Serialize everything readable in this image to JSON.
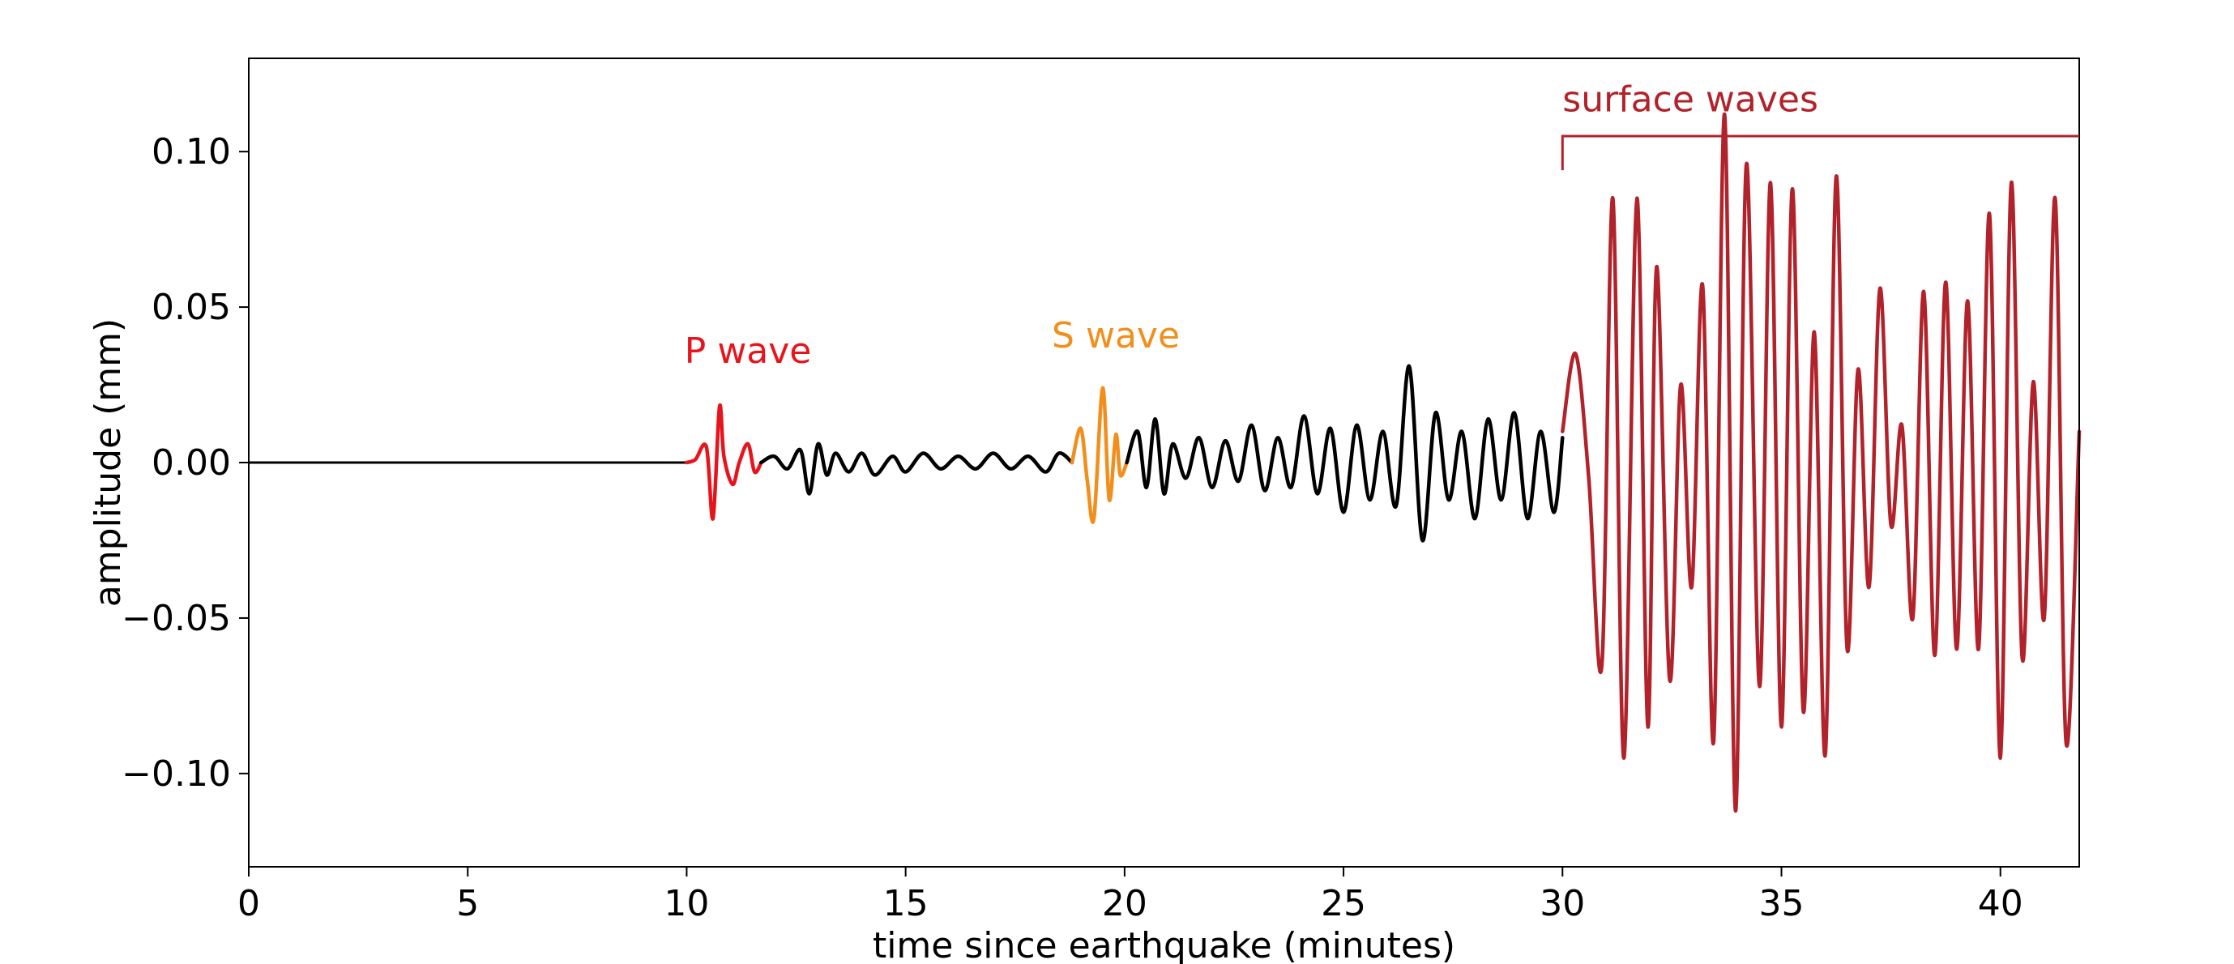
{
  "chart_data": {
    "type": "line",
    "title": "",
    "xlabel": "time since earthquake (minutes)",
    "ylabel": "amplitude (mm)",
    "xlim": [
      0,
      41.8
    ],
    "ylim": [
      -0.13,
      0.13
    ],
    "grid": false,
    "x_ticks": [
      0,
      5,
      10,
      15,
      20,
      25,
      30,
      35,
      40
    ],
    "x_tick_labels": [
      "0",
      "5",
      "10",
      "15",
      "20",
      "25",
      "30",
      "35",
      "40"
    ],
    "y_ticks": [
      0.1,
      0.05,
      0.0,
      -0.05,
      -0.1
    ],
    "y_tick_labels": [
      "0.10",
      "0.05",
      "0.00",
      "−0.05",
      "−0.10"
    ],
    "colors": {
      "background": "#000000",
      "p_wave": "#e8141c",
      "s_wave": "#f28e1c",
      "surface_waves": "#b2222a"
    },
    "annotations": [
      {
        "id": "p",
        "text": "P wave",
        "x": 11.4,
        "y": 0.032,
        "color": "#e8141c"
      },
      {
        "id": "s",
        "text": "S wave",
        "x": 19.8,
        "y": 0.037,
        "color": "#f28e1c"
      },
      {
        "id": "surface",
        "text": "surface waves",
        "x": 30.0,
        "y": 0.113,
        "color": "#b2222a",
        "bracket_x": [
          30.0,
          41.8
        ],
        "bracket_y": 0.105,
        "bracket_drop": 0.094
      }
    ],
    "series": [
      {
        "segment": "background-noise",
        "color": "#000000",
        "x": [
          0,
          1,
          2,
          3,
          4,
          5,
          6,
          7,
          8,
          9,
          9.8,
          10.0
        ],
        "y": [
          0.0,
          0.0,
          0.0,
          0.0,
          0.0,
          0.0,
          0.0,
          0.0,
          0.0,
          0.0,
          0.0,
          0.0
        ]
      },
      {
        "segment": "p-wave",
        "color": "#e8141c",
        "x": [
          10.0,
          10.2,
          10.45,
          10.6,
          10.75,
          10.85,
          11.05,
          11.2,
          11.4,
          11.55,
          11.7
        ],
        "y": [
          0.0,
          0.001,
          0.005,
          -0.018,
          0.018,
          0.002,
          -0.007,
          0.0,
          0.006,
          -0.003,
          0.0
        ]
      },
      {
        "segment": "coda-1",
        "color": "#000000",
        "x": [
          11.7,
          12.0,
          12.3,
          12.6,
          12.8,
          13.0,
          13.2,
          13.4,
          13.7,
          14.0,
          14.3,
          14.7,
          15.0,
          15.4,
          15.8,
          16.2,
          16.6,
          17.0,
          17.4,
          17.8,
          18.2,
          18.5,
          18.8
        ],
        "y": [
          0.0,
          0.002,
          -0.002,
          0.004,
          -0.01,
          0.006,
          -0.004,
          0.003,
          -0.003,
          0.003,
          -0.004,
          0.002,
          -0.003,
          0.003,
          -0.002,
          0.002,
          -0.002,
          0.003,
          -0.002,
          0.002,
          -0.003,
          0.003,
          0.0
        ]
      },
      {
        "segment": "s-wave",
        "color": "#f28e1c",
        "x": [
          18.8,
          19.0,
          19.15,
          19.3,
          19.5,
          19.65,
          19.8,
          19.9,
          20.05
        ],
        "y": [
          0.0,
          0.011,
          -0.006,
          -0.018,
          0.024,
          -0.012,
          0.009,
          -0.004,
          0.0
        ]
      },
      {
        "segment": "coda-2",
        "color": "#000000",
        "x": [
          20.05,
          20.3,
          20.5,
          20.7,
          20.9,
          21.1,
          21.4,
          21.7,
          22.0,
          22.3,
          22.6,
          22.9,
          23.2,
          23.5,
          23.8,
          24.1,
          24.4,
          24.7,
          25.0,
          25.3,
          25.6,
          25.9,
          26.2,
          26.5,
          26.8,
          27.1,
          27.4,
          27.7,
          28.0,
          28.3,
          28.6,
          28.9,
          29.2,
          29.5,
          29.8,
          30.0
        ],
        "y": [
          0.0,
          0.01,
          -0.008,
          0.014,
          -0.01,
          0.006,
          -0.005,
          0.008,
          -0.008,
          0.007,
          -0.006,
          0.012,
          -0.009,
          0.008,
          -0.008,
          0.015,
          -0.01,
          0.011,
          -0.016,
          0.012,
          -0.012,
          0.01,
          -0.014,
          0.031,
          -0.025,
          0.016,
          -0.012,
          0.01,
          -0.018,
          0.014,
          -0.012,
          0.016,
          -0.018,
          0.01,
          -0.016,
          0.008
        ]
      },
      {
        "segment": "surface-waves",
        "color": "#b2222a",
        "x": [
          30.0,
          30.3,
          30.6,
          30.9,
          31.15,
          31.4,
          31.7,
          31.95,
          32.15,
          32.45,
          32.7,
          32.95,
          33.2,
          33.45,
          33.7,
          33.95,
          34.2,
          34.5,
          34.75,
          35.0,
          35.25,
          35.5,
          35.75,
          36.0,
          36.25,
          36.5,
          36.75,
          37.0,
          37.25,
          37.5,
          37.75,
          38.0,
          38.25,
          38.5,
          38.75,
          39.0,
          39.25,
          39.5,
          39.75,
          40.0,
          40.25,
          40.5,
          40.75,
          41.0,
          41.25,
          41.5,
          41.8
        ],
        "y": [
          0.01,
          0.035,
          -0.005,
          -0.065,
          0.085,
          -0.095,
          0.085,
          -0.085,
          0.063,
          -0.07,
          0.025,
          -0.04,
          0.057,
          -0.09,
          0.112,
          -0.112,
          0.096,
          -0.072,
          0.09,
          -0.085,
          0.088,
          -0.08,
          0.042,
          -0.094,
          0.092,
          -0.06,
          0.03,
          -0.04,
          0.056,
          -0.02,
          0.012,
          -0.05,
          0.055,
          -0.062,
          0.058,
          -0.06,
          0.052,
          -0.06,
          0.08,
          -0.095,
          0.09,
          -0.063,
          0.026,
          -0.05,
          0.085,
          -0.09,
          0.01
        ]
      }
    ]
  }
}
